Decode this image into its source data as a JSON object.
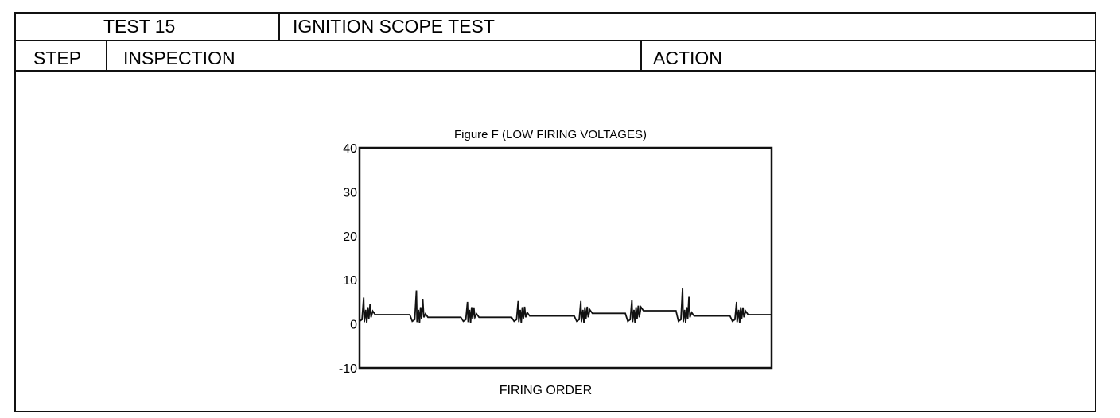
{
  "header": {
    "test_label": "TEST 15",
    "test_title": "IGNITION SCOPE TEST",
    "step_label": "STEP",
    "inspection_label": "INSPECTION",
    "action_label": "ACTION"
  },
  "chart_data": {
    "type": "line",
    "title": "Figure F (LOW FIRING VOLTAGES)",
    "xlabel": "FIRING ORDER",
    "ylabel": "",
    "ylim": [
      -10,
      40
    ],
    "yticks": [
      "40",
      "30",
      "20",
      "10",
      "0",
      "-10"
    ],
    "xlim": [
      0,
      100
    ],
    "grid": false,
    "line_color": "#111111",
    "firing_events": [
      {
        "x": 1.0,
        "peak": 6.0,
        "baseline": 2.1
      },
      {
        "x": 13.8,
        "peak": 7.6,
        "baseline": 1.5
      },
      {
        "x": 26.2,
        "peak": 5.0,
        "baseline": 1.5
      },
      {
        "x": 38.5,
        "peak": 5.2,
        "baseline": 1.8
      },
      {
        "x": 53.7,
        "peak": 5.2,
        "baseline": 2.4
      },
      {
        "x": 66.1,
        "peak": 5.5,
        "baseline": 3.0
      },
      {
        "x": 78.4,
        "peak": 8.2,
        "baseline": 1.8
      },
      {
        "x": 91.5,
        "peak": 5.0,
        "baseline": 2.1
      }
    ]
  }
}
